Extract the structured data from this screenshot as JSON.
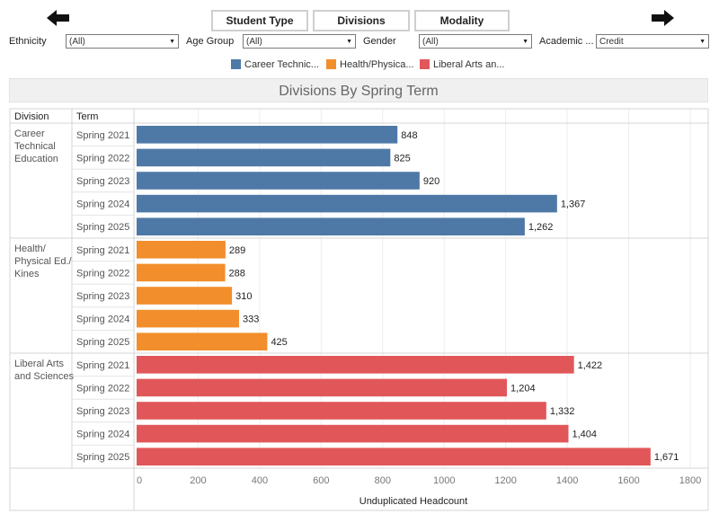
{
  "toolbar": {
    "buttons": [
      "Student Type",
      "Divisions",
      "Modality"
    ]
  },
  "filters": [
    {
      "label": "Ethnicity",
      "value": "(All)"
    },
    {
      "label": "Age Group",
      "value": "(All)"
    },
    {
      "label": "Gender",
      "value": "(All)"
    },
    {
      "label": "Academic ...",
      "value": "Credit"
    }
  ],
  "legend": [
    {
      "label": "Career Technic...",
      "color": "#4e79a7"
    },
    {
      "label": "Health/Physica...",
      "color": "#f28e2b"
    },
    {
      "label": "Liberal Arts an...",
      "color": "#e15759"
    }
  ],
  "chart_data": {
    "type": "bar",
    "orientation": "horizontal",
    "title": "Divisions By Spring Term",
    "column_headers": {
      "division": "Division",
      "term": "Term"
    },
    "xlabel": "Unduplicated Headcount",
    "xlim": [
      0,
      1800
    ],
    "xticks": [
      0,
      200,
      400,
      600,
      800,
      1000,
      1200,
      1400,
      1600,
      1800
    ],
    "groups": [
      {
        "name": "Career Technical Education",
        "name_lines": [
          "Career",
          "Technical",
          "Education"
        ],
        "color": "#4e79a7",
        "terms": [
          "Spring 2021",
          "Spring 2022",
          "Spring 2023",
          "Spring 2024",
          "Spring 2025"
        ],
        "values": [
          848,
          825,
          920,
          1367,
          1262
        ],
        "labels": [
          "848",
          "825",
          "920",
          "1,367",
          "1,262"
        ]
      },
      {
        "name": "Health/Physical Ed./Kines",
        "name_lines": [
          "Health/",
          "Physical Ed./",
          "Kines"
        ],
        "color": "#f28e2b",
        "terms": [
          "Spring 2021",
          "Spring 2022",
          "Spring 2023",
          "Spring 2024",
          "Spring 2025"
        ],
        "values": [
          289,
          288,
          310,
          333,
          425
        ],
        "labels": [
          "289",
          "288",
          "310",
          "333",
          "425"
        ]
      },
      {
        "name": "Liberal Arts and Sciences",
        "name_lines": [
          "Liberal Arts",
          "and Sciences"
        ],
        "color": "#e15759",
        "terms": [
          "Spring 2021",
          "Spring 2022",
          "Spring 2023",
          "Spring 2024",
          "Spring 2025"
        ],
        "values": [
          1422,
          1204,
          1332,
          1404,
          1671
        ],
        "labels": [
          "1,422",
          "1,204",
          "1,332",
          "1,404",
          "1,671"
        ]
      }
    ]
  }
}
